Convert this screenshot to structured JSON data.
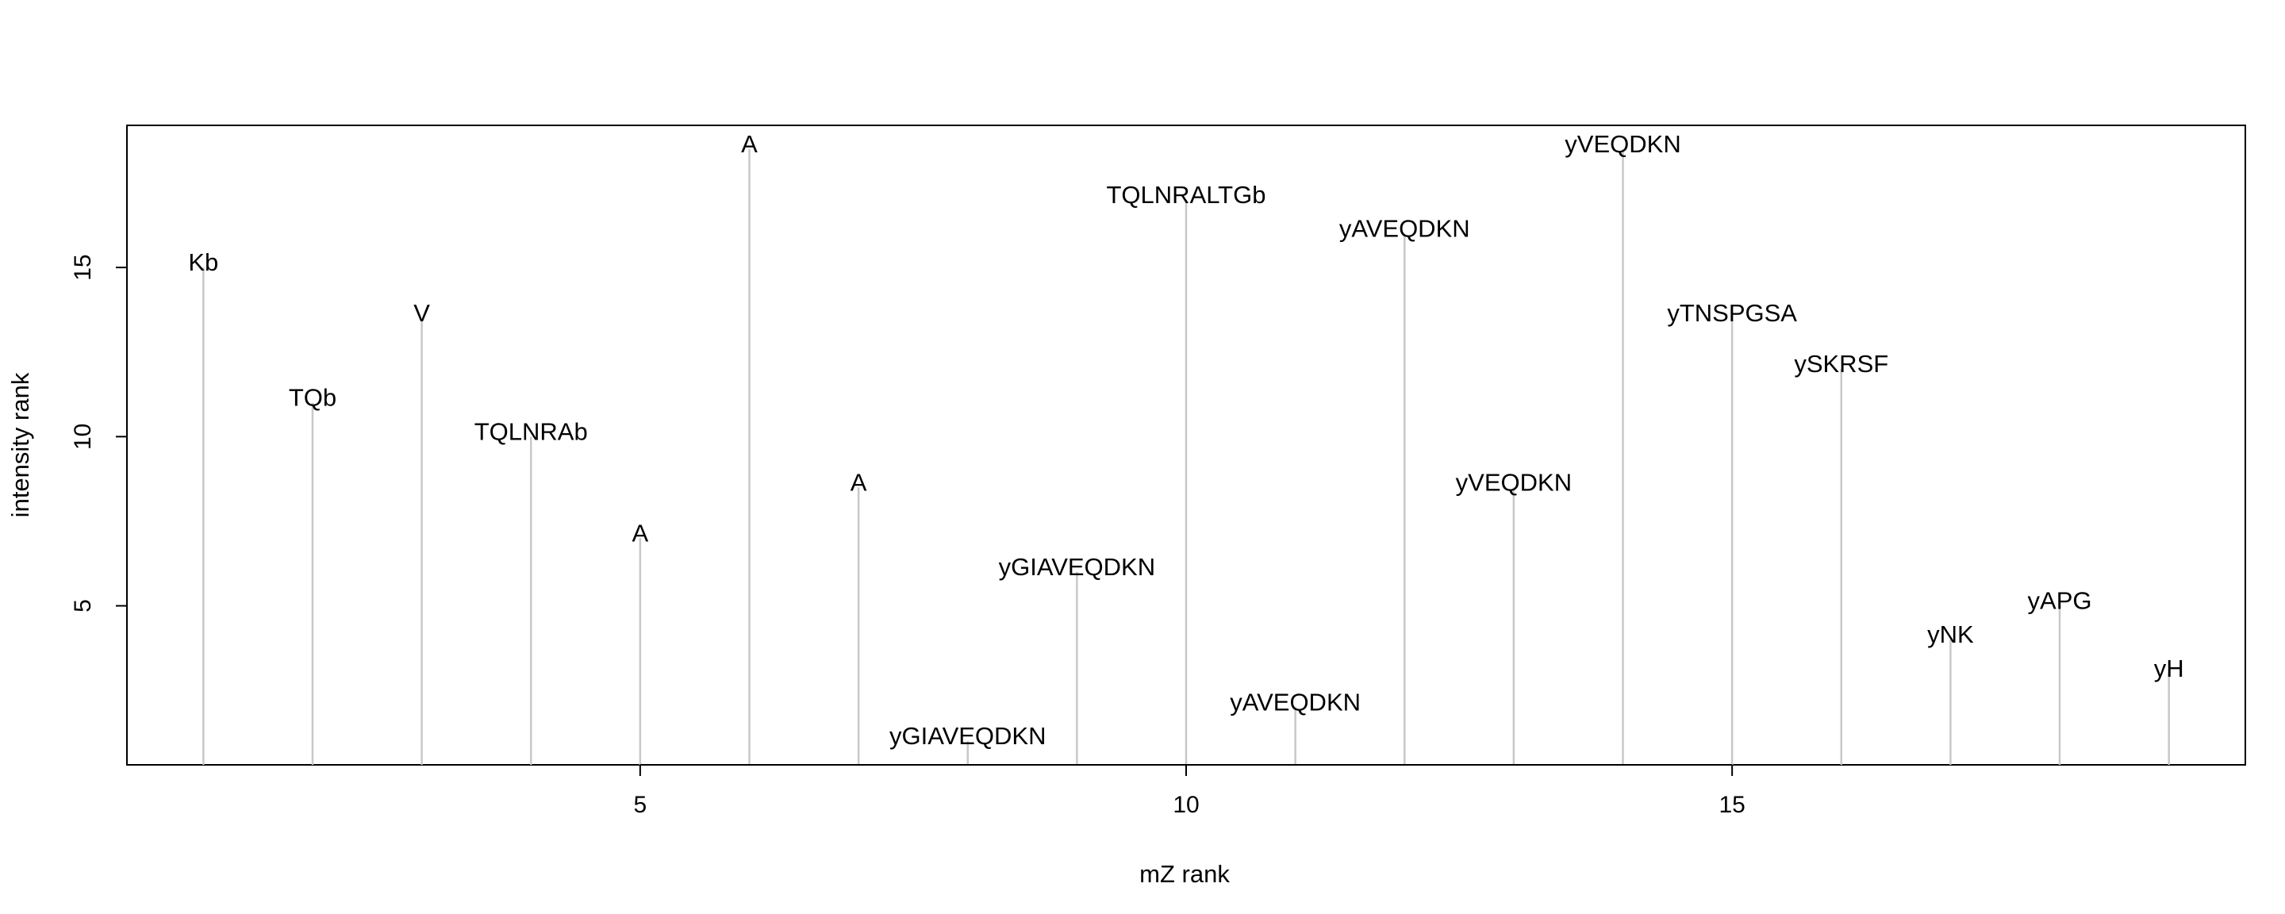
{
  "chart_data": {
    "type": "bar",
    "style": "vertical spike lines with text labels at top",
    "xlabel": "mZ rank",
    "ylabel": "intensity rank",
    "xlim": [
      0.3,
      19.7
    ],
    "ylim": [
      0.3,
      19.2
    ],
    "x_ticks": [
      5,
      10,
      15
    ],
    "y_ticks": [
      5,
      10,
      15
    ],
    "grid": false,
    "legend": "none",
    "spike_color": "#c8c8c8",
    "points": [
      {
        "x": 1,
        "y": 15,
        "label": "Kb"
      },
      {
        "x": 2,
        "y": 11,
        "label": "TQb"
      },
      {
        "x": 3,
        "y": 13.5,
        "label": "V"
      },
      {
        "x": 4,
        "y": 10,
        "label": "TQLNRAb"
      },
      {
        "x": 5,
        "y": 7,
        "label": "A"
      },
      {
        "x": 6,
        "y": 18.5,
        "label": "A"
      },
      {
        "x": 7,
        "y": 8.5,
        "label": "A"
      },
      {
        "x": 8,
        "y": 1,
        "label": "yGIAVEQDKN"
      },
      {
        "x": 9,
        "y": 6,
        "label": "yGIAVEQDKN"
      },
      {
        "x": 10,
        "y": 17,
        "label": "TQLNRALTGb"
      },
      {
        "x": 11,
        "y": 2,
        "label": "yAVEQDKN"
      },
      {
        "x": 12,
        "y": 16,
        "label": "yAVEQDKN"
      },
      {
        "x": 13,
        "y": 8.5,
        "label": "yVEQDKN"
      },
      {
        "x": 14,
        "y": 18.5,
        "label": "yVEQDKN"
      },
      {
        "x": 15,
        "y": 13.5,
        "label": "yTNSPGSA"
      },
      {
        "x": 16,
        "y": 12,
        "label": "ySKRSF"
      },
      {
        "x": 17,
        "y": 4,
        "label": "yNK"
      },
      {
        "x": 18,
        "y": 5,
        "label": "yAPG"
      },
      {
        "x": 19,
        "y": 3,
        "label": "yH"
      }
    ]
  }
}
